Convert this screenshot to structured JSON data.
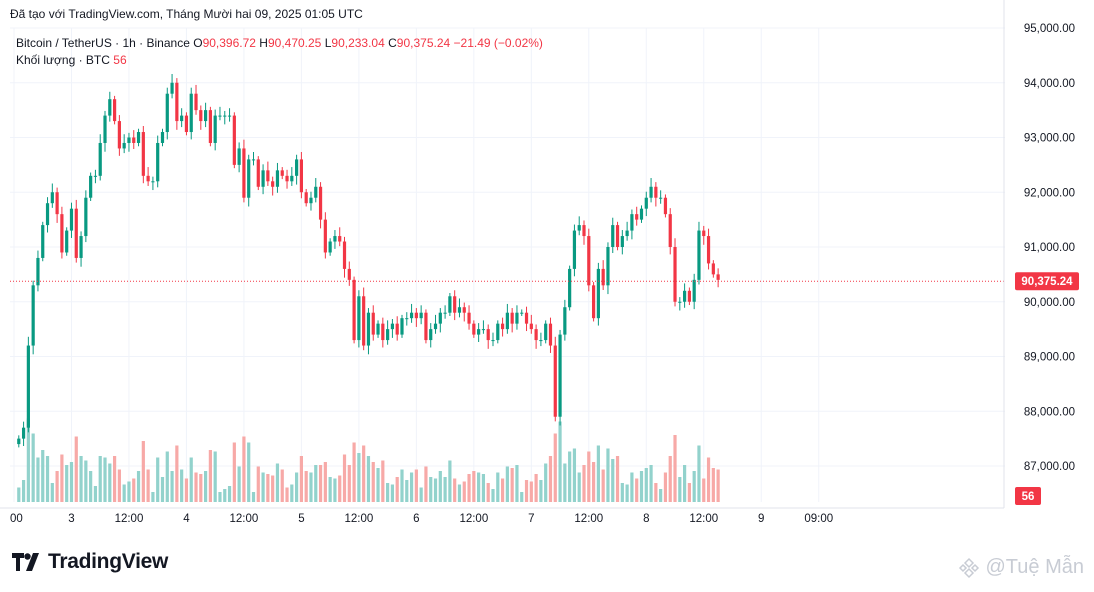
{
  "header": {
    "text": "Đã tạo với TradingView.com, Tháng Mười hai 09, 2025 01:05 UTC"
  },
  "legend": {
    "symbol": "Bitcoin / TetherUS · 1h · Binance",
    "o_label": "O",
    "o_value": "90,396.72",
    "h_label": "H",
    "h_value": "90,470.25",
    "l_label": "L",
    "l_value": "90,233.04",
    "c_label": "C",
    "c_value": "90,375.24",
    "change": "−21.49 (−0.02%)",
    "volume_label": "Khối lượng · BTC",
    "volume_value": "56"
  },
  "brand": {
    "name": "TradingView"
  },
  "watermark": {
    "text": "@Tuệ Mẫn"
  },
  "colors": {
    "up": "#089981",
    "down": "#f23645",
    "vol_up": "#92d2cc",
    "vol_down": "#f7a9a7",
    "grid": "#f0f3fa",
    "axis_text": "#131722"
  },
  "chart_data": {
    "type": "candlestick",
    "symbol": "Bitcoin / TetherUS",
    "interval": "1h",
    "exchange": "Binance",
    "y_ticks": [
      "95,000.00",
      "94,000.00",
      "93,000.00",
      "92,000.00",
      "91,000.00",
      "90,000.00",
      "89,000.00",
      "88,000.00",
      "87,000.00"
    ],
    "y_tick_values": [
      95000,
      94000,
      93000,
      92000,
      91000,
      90000,
      89000,
      88000,
      87000
    ],
    "x_ticks": [
      "00",
      "3",
      "12:00",
      "4",
      "12:00",
      "5",
      "12:00",
      "6",
      "12:00",
      "7",
      "12:00",
      "8",
      "12:00",
      "9",
      "09:00"
    ],
    "last_price_label": "90,375.24",
    "last_price": 90375.24,
    "last_volume_label": "56",
    "hours_before_first_label": 1,
    "closes": [
      87500,
      87700,
      89200,
      90300,
      90800,
      91400,
      91800,
      92000,
      91600,
      90900,
      91300,
      91700,
      90800,
      91200,
      91900,
      92300,
      92300,
      92900,
      93400,
      93700,
      93300,
      92800,
      92900,
      93000,
      92900,
      93100,
      92300,
      92200,
      92200,
      92900,
      93100,
      93800,
      94000,
      93300,
      93400,
      93100,
      93800,
      93500,
      93300,
      93500,
      92900,
      93400,
      93400,
      93400,
      93400,
      92500,
      92800,
      91900,
      92600,
      92600,
      92100,
      92400,
      92200,
      92100,
      92400,
      92300,
      92200,
      92300,
      92600,
      92000,
      91800,
      91900,
      92100,
      91500,
      90900,
      91100,
      91200,
      91100,
      90600,
      90400,
      89300,
      90100,
      89200,
      89800,
      89400,
      89600,
      89300,
      89500,
      89600,
      89400,
      89700,
      89700,
      89800,
      89700,
      89800,
      89300,
      89500,
      89600,
      89800,
      89800,
      90100,
      89800,
      89900,
      89800,
      89600,
      89400,
      89500,
      89500,
      89300,
      89300,
      89600,
      89500,
      89800,
      89600,
      89800,
      89800,
      89600,
      89500,
      89300,
      89300,
      89600,
      89200,
      87900,
      89400,
      89900,
      90600,
      91300,
      91400,
      91200,
      90300,
      89700,
      90600,
      90300,
      91000,
      91400,
      91000,
      91200,
      91300,
      91600,
      91500,
      91700,
      91900,
      92100,
      91900,
      91900,
      91600,
      91000,
      90000,
      90000,
      90200,
      90000,
      90400,
      91300,
      91200,
      90700,
      90500,
      90400
    ]
  }
}
